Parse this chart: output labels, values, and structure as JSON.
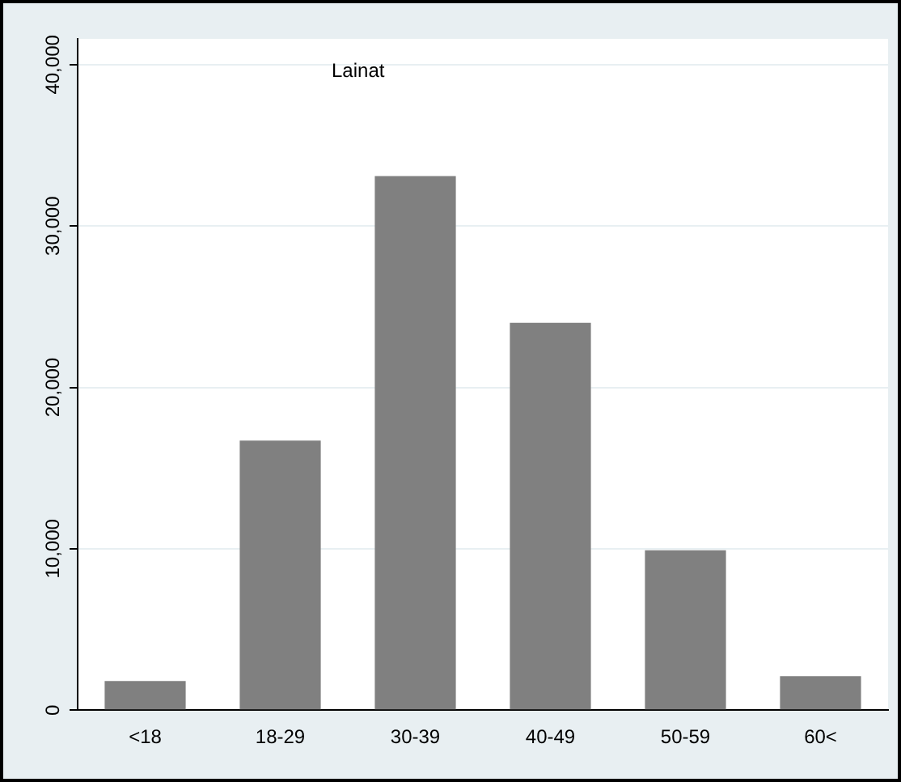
{
  "chart_data": {
    "type": "bar",
    "title": "Lainat",
    "categories": [
      "<18",
      "18-29",
      "30-39",
      "40-49",
      "50-59",
      "60<"
    ],
    "values": [
      1800,
      16700,
      33100,
      24000,
      9900,
      2100
    ],
    "color": "#808080",
    "ylim": [
      0,
      41600
    ],
    "yticks": [
      {
        "value": 0,
        "label": "0"
      },
      {
        "value": 10000,
        "label": "10,000"
      },
      {
        "value": 20000,
        "label": "20,000"
      },
      {
        "value": 30000,
        "label": "30,000"
      },
      {
        "value": 40000,
        "label": "40,000"
      }
    ],
    "grid": "y"
  }
}
